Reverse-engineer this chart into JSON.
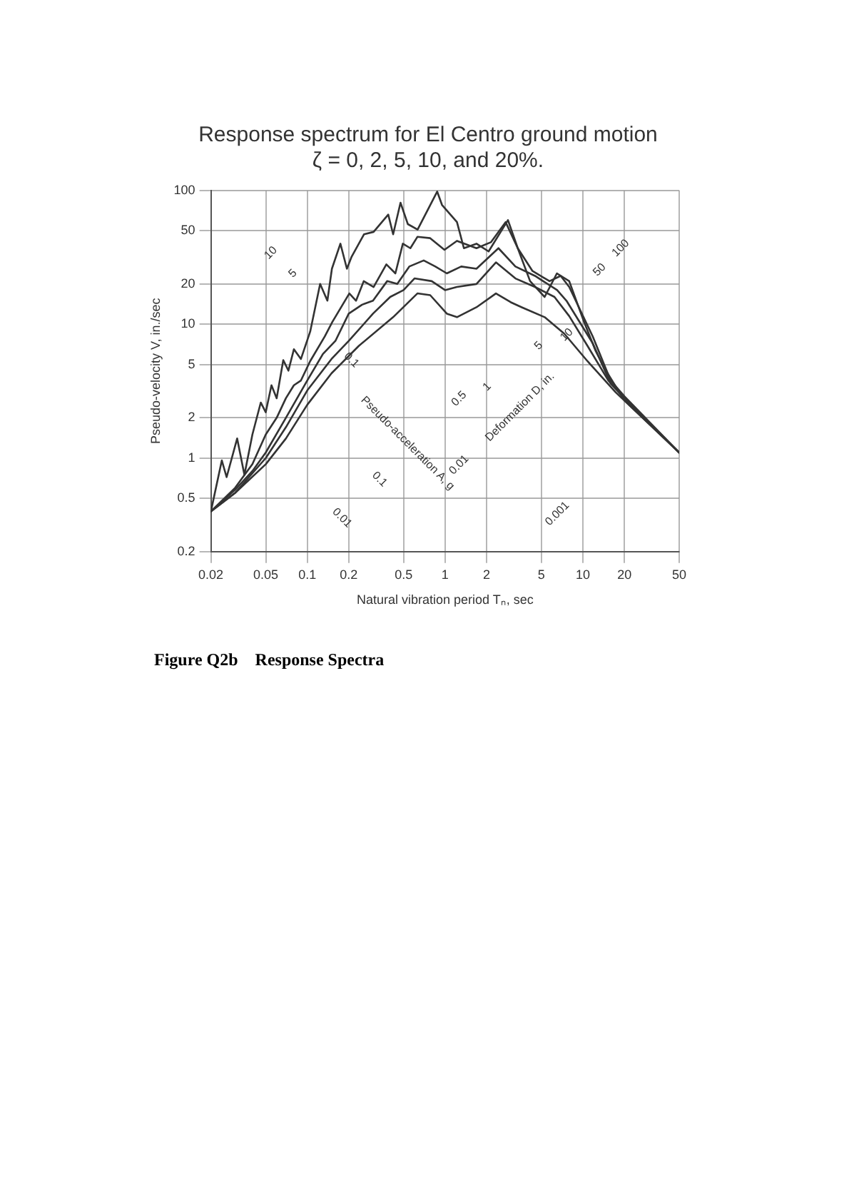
{
  "chart_data": {
    "type": "line",
    "title": "Response spectrum for El Centro ground motion",
    "subtitle": "ζ = 0, 2, 5, 10, and 20%.",
    "xlabel": "Natural vibration period Tₙ, sec",
    "ylabel": "Pseudo-velocity V, in./sec",
    "log": "xy",
    "grid": true,
    "legend": false,
    "marker": "none",
    "line_style": "solid",
    "xlim": [
      0.02,
      50
    ],
    "xticks": [
      0.02,
      0.05,
      0.1,
      0.2,
      0.5,
      1,
      2,
      5,
      10,
      20,
      50
    ],
    "ylim": [
      0.2,
      100
    ],
    "yticks": [
      0.2,
      0.5,
      1,
      2,
      5,
      10,
      20,
      50,
      100
    ],
    "series": [
      {
        "color": "#333333",
        "x": [
          0.02,
          0.024,
          0.026,
          0.031,
          0.035,
          0.04,
          0.046,
          0.05,
          0.055,
          0.06,
          0.067,
          0.073,
          0.08,
          0.09,
          0.105,
          0.124,
          0.14,
          0.151,
          0.174,
          0.194,
          0.21,
          0.258,
          0.303,
          0.387,
          0.42,
          0.475,
          0.537,
          0.632,
          0.877,
          0.95,
          1.22,
          1.37,
          1.69,
          2.07,
          2.86,
          3.37,
          4.14,
          5.28,
          6.48,
          7.96,
          10.2,
          12.4,
          14.7,
          20,
          50
        ],
        "values": [
          0.4,
          0.96,
          0.72,
          1.4,
          0.75,
          1.5,
          2.6,
          2.2,
          3.5,
          2.8,
          5.4,
          4.5,
          6.5,
          5.5,
          8.8,
          20,
          15,
          26,
          40,
          26,
          32,
          47,
          49,
          66,
          47,
          81,
          56,
          51,
          98,
          78,
          58,
          37,
          40,
          35,
          60,
          37,
          21,
          16,
          24,
          21,
          10.4,
          6.3,
          4.5,
          2.7,
          1.1
        ]
      },
      {
        "color": "#333333",
        "x": [
          0.02,
          0.03,
          0.04,
          0.05,
          0.06,
          0.07,
          0.08,
          0.09,
          0.105,
          0.134,
          0.152,
          0.202,
          0.226,
          0.257,
          0.303,
          0.375,
          0.436,
          0.494,
          0.56,
          0.63,
          0.78,
          0.99,
          1.22,
          1.69,
          2.15,
          2.75,
          3.37,
          4.31,
          5.73,
          6.9,
          7.96,
          11.8,
          15.9,
          20,
          50
        ],
        "values": [
          0.4,
          0.6,
          0.9,
          1.5,
          2,
          2.8,
          3.5,
          3.8,
          5.3,
          8.1,
          10.4,
          17,
          15,
          21,
          19,
          28,
          24,
          40,
          37,
          45,
          44,
          36,
          42,
          37,
          41,
          58,
          37,
          25,
          21,
          23,
          19,
          8.1,
          3.8,
          2.9,
          1.1
        ]
      },
      {
        "color": "#333333",
        "x": [
          0.02,
          0.03,
          0.04,
          0.05,
          0.07,
          0.1,
          0.13,
          0.16,
          0.2,
          0.25,
          0.3,
          0.38,
          0.45,
          0.55,
          0.7,
          0.85,
          1.03,
          1.31,
          1.69,
          2.44,
          3.24,
          4.49,
          6.5,
          7.6,
          11.8,
          15.9,
          20,
          50
        ],
        "values": [
          0.4,
          0.58,
          0.8,
          1.1,
          2,
          3.8,
          6,
          7.5,
          12,
          14,
          15,
          21,
          20,
          27,
          30,
          27,
          24,
          27,
          26,
          37,
          27,
          23,
          18,
          15,
          7.2,
          3.6,
          2.8,
          1.1
        ]
      },
      {
        "color": "#333333",
        "x": [
          0.02,
          0.03,
          0.05,
          0.07,
          0.1,
          0.15,
          0.2,
          0.3,
          0.4,
          0.5,
          0.6,
          0.8,
          1.0,
          1.22,
          1.69,
          2.34,
          3.24,
          4.49,
          6.22,
          7.96,
          10.8,
          15.3,
          20,
          50
        ],
        "values": [
          0.4,
          0.55,
          1,
          1.7,
          3.2,
          5.5,
          7.5,
          12,
          16,
          18,
          22,
          21,
          18,
          19,
          20,
          29,
          22,
          19,
          16,
          11.5,
          6.9,
          3.8,
          2.8,
          1.1
        ]
      },
      {
        "color": "#333333",
        "x": [
          0.02,
          0.03,
          0.05,
          0.07,
          0.1,
          0.15,
          0.237,
          0.42,
          0.63,
          0.78,
          1.03,
          1.22,
          1.69,
          2.34,
          3.0,
          3.6,
          5.28,
          7.33,
          10.8,
          17.3,
          50
        ],
        "values": [
          0.4,
          0.55,
          0.9,
          1.4,
          2.5,
          4.3,
          6.9,
          11.3,
          17,
          16.5,
          12,
          11.3,
          13.4,
          17,
          14.6,
          13.4,
          11.3,
          8.5,
          5.3,
          3.1,
          1.1
        ]
      }
    ],
    "annotations": [
      "10",
      "5",
      "0.1",
      "Pseudo-acceleration A, g",
      "0.1",
      "0.5",
      "1",
      "0.01",
      "Deformation D, in.",
      "0.01",
      "0.001",
      "5",
      "10",
      "50",
      "100",
      "Figure Q2b    Response Spectra"
    ]
  }
}
